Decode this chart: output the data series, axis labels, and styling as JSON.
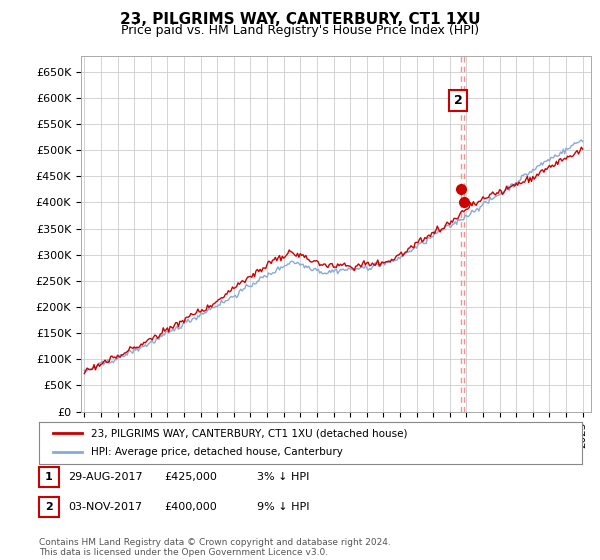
{
  "title": "23, PILGRIMS WAY, CANTERBURY, CT1 1XU",
  "subtitle": "Price paid vs. HM Land Registry's House Price Index (HPI)",
  "ylabel_ticks": [
    "£0",
    "£50K",
    "£100K",
    "£150K",
    "£200K",
    "£250K",
    "£300K",
    "£350K",
    "£400K",
    "£450K",
    "£500K",
    "£550K",
    "£600K",
    "£650K"
  ],
  "ytick_values": [
    0,
    50000,
    100000,
    150000,
    200000,
    250000,
    300000,
    350000,
    400000,
    450000,
    500000,
    550000,
    600000,
    650000
  ],
  "ylim": [
    0,
    680000
  ],
  "xlim_start": 1994.8,
  "xlim_end": 2025.5,
  "transaction1": {
    "date_num": 2017.66,
    "price": 425000,
    "label": "1"
  },
  "transaction2": {
    "date_num": 2017.84,
    "price": 400000,
    "label": "2"
  },
  "hpi_line_color": "#88aadd",
  "price_line_color": "#cc0000",
  "marker_color": "#cc0000",
  "vline_color": "#ee8888",
  "legend_label_price": "23, PILGRIMS WAY, CANTERBURY, CT1 1XU (detached house)",
  "legend_label_hpi": "HPI: Average price, detached house, Canterbury",
  "footer": "Contains HM Land Registry data © Crown copyright and database right 2024.\nThis data is licensed under the Open Government Licence v3.0.",
  "table_rows": [
    {
      "num": "1",
      "date": "29-AUG-2017",
      "amount": "£425,000",
      "pct": "3% ↓ HPI"
    },
    {
      "num": "2",
      "date": "03-NOV-2017",
      "amount": "£400,000",
      "pct": "9% ↓ HPI"
    }
  ],
  "bg_color": "#ffffff",
  "plot_bg_color": "#ffffff",
  "grid_color": "#cccccc"
}
